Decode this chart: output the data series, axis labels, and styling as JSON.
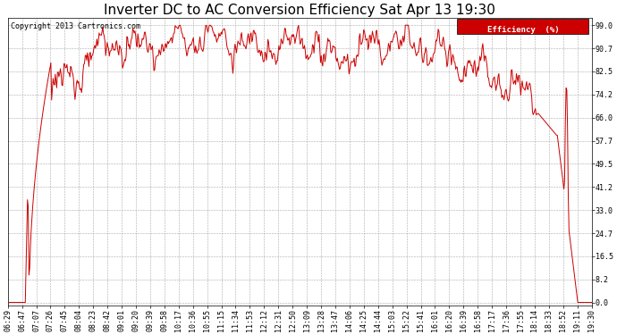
{
  "title": "Inverter DC to AC Conversion Efficiency Sat Apr 13 19:30",
  "copyright": "Copyright 2013 Cartronics.com",
  "legend_label": "Efficiency  (%)",
  "legend_bg": "#cc0000",
  "legend_fg": "#ffffff",
  "line_color": "#cc0000",
  "bg_color": "#ffffff",
  "plot_bg": "#ffffff",
  "grid_color": "#aaaaaa",
  "yticks": [
    0.0,
    8.2,
    16.5,
    24.7,
    33.0,
    41.2,
    49.5,
    57.7,
    66.0,
    74.2,
    82.5,
    90.7,
    99.0
  ],
  "ylim": [
    -1.0,
    101.5
  ],
  "x_labels": [
    "06:29",
    "06:47",
    "07:07",
    "07:26",
    "07:45",
    "08:04",
    "08:23",
    "08:42",
    "09:01",
    "09:20",
    "09:39",
    "09:58",
    "10:17",
    "10:36",
    "10:55",
    "11:15",
    "11:34",
    "11:53",
    "12:12",
    "12:31",
    "12:50",
    "13:09",
    "13:28",
    "13:47",
    "14:06",
    "14:25",
    "14:44",
    "15:03",
    "15:22",
    "15:41",
    "16:01",
    "16:20",
    "16:39",
    "16:58",
    "17:17",
    "17:36",
    "17:55",
    "18:14",
    "18:33",
    "18:52",
    "19:11",
    "19:30"
  ],
  "title_fontsize": 11,
  "axis_fontsize": 6,
  "copyright_fontsize": 6
}
